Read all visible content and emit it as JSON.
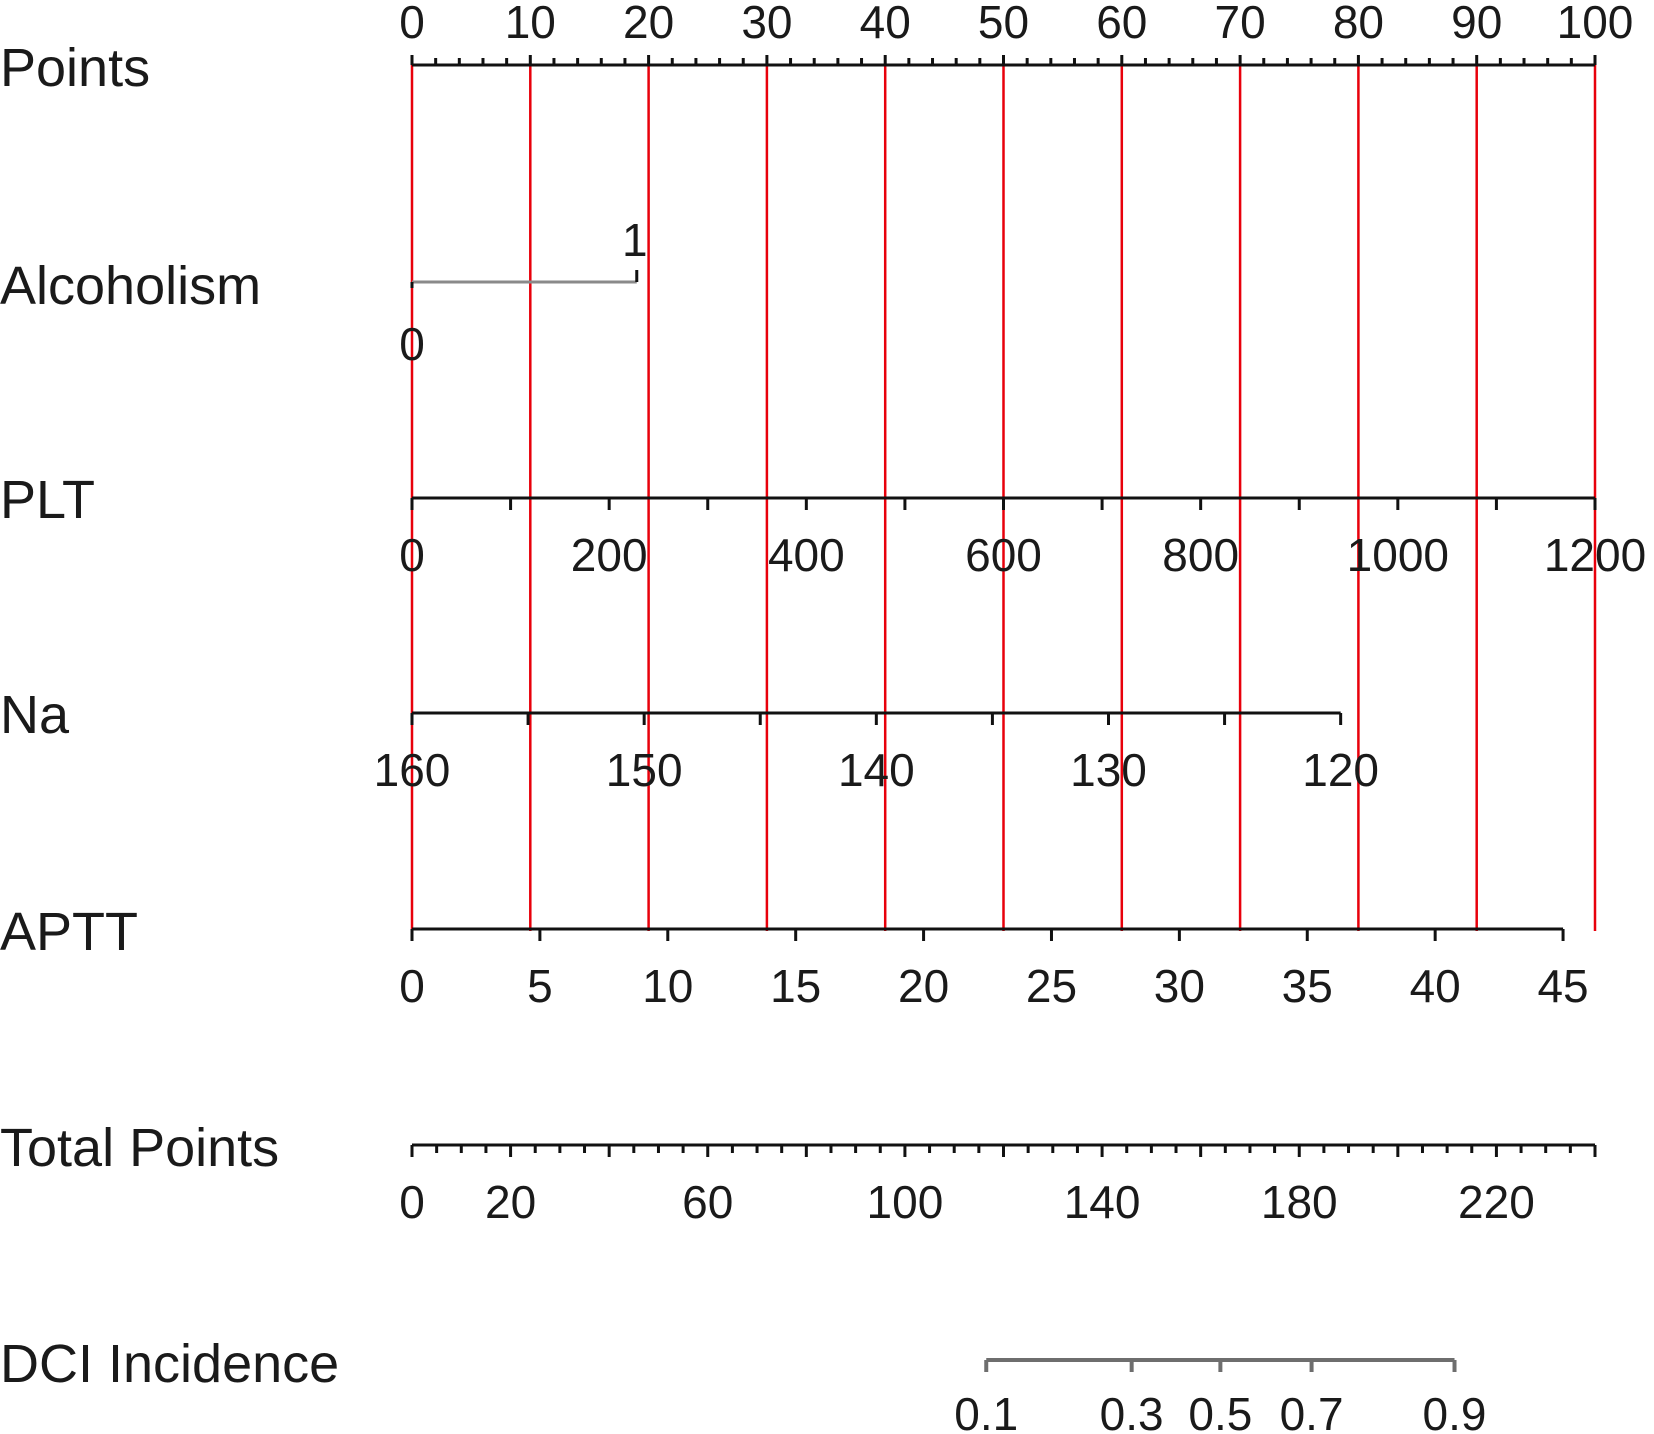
{
  "chart_data": {
    "type": "nomogram",
    "title": "",
    "guide_line_color": "#e8000b",
    "guide_lines_at_points": [
      0,
      10,
      20,
      30,
      40,
      50,
      60,
      70,
      80,
      90,
      100
    ],
    "rows": [
      {
        "key": "points",
        "label": "Points",
        "range": [
          0,
          100
        ],
        "major_ticks": [
          0,
          10,
          20,
          30,
          40,
          50,
          60,
          70,
          80,
          90,
          100
        ],
        "minor_step": 2,
        "tick_labels": [
          "0",
          "10",
          "20",
          "30",
          "40",
          "50",
          "60",
          "70",
          "80",
          "90",
          "100"
        ]
      },
      {
        "key": "alcoholism",
        "label": "Alcoholism",
        "levels": [
          {
            "value": "0",
            "points": 0
          },
          {
            "value": "1",
            "points": 19
          }
        ]
      },
      {
        "key": "plt",
        "label": "PLT",
        "value_range": [
          0,
          1200
        ],
        "points_range": [
          0,
          100
        ],
        "ticks": [
          0,
          100,
          200,
          300,
          400,
          500,
          600,
          700,
          800,
          900,
          1000,
          1100,
          1200
        ],
        "tick_labels": [
          "0",
          "200",
          "400",
          "600",
          "800",
          "1000",
          "1200"
        ],
        "labeled_values": [
          0,
          200,
          400,
          600,
          800,
          1000,
          1200
        ]
      },
      {
        "key": "na",
        "label": "Na",
        "value_range": [
          160,
          120
        ],
        "points_range": [
          0,
          78.5
        ],
        "ticks": [
          160,
          155,
          150,
          145,
          140,
          135,
          130,
          125,
          120
        ],
        "tick_labels": [
          "160",
          "150",
          "140",
          "130",
          "120"
        ],
        "labeled_values": [
          160,
          150,
          140,
          130,
          120
        ]
      },
      {
        "key": "aptt",
        "label": "APTT",
        "value_range": [
          0,
          45
        ],
        "points_range": [
          0,
          97.3
        ],
        "ticks": [
          0,
          5,
          10,
          15,
          20,
          25,
          30,
          35,
          40,
          45
        ],
        "tick_labels": [
          "0",
          "5",
          "10",
          "15",
          "20",
          "25",
          "30",
          "35",
          "40",
          "45"
        ]
      },
      {
        "key": "total_points",
        "label": "Total Points",
        "range": [
          0,
          240
        ],
        "minor_step": 5,
        "labeled_values": [
          0,
          20,
          60,
          100,
          140,
          180,
          220
        ],
        "tick_labels": [
          "0",
          "20",
          "60",
          "100",
          "140",
          "180",
          "220"
        ]
      },
      {
        "key": "dci",
        "label": "DCI Incidence",
        "values": [
          0.1,
          0.3,
          0.5,
          0.7,
          0.9
        ],
        "total_points_at": [
          116.5,
          146,
          164,
          182.5,
          211.5
        ],
        "tick_labels": [
          "0.1",
          "0.3",
          "0.5",
          "0.7",
          "0.9"
        ]
      }
    ]
  }
}
